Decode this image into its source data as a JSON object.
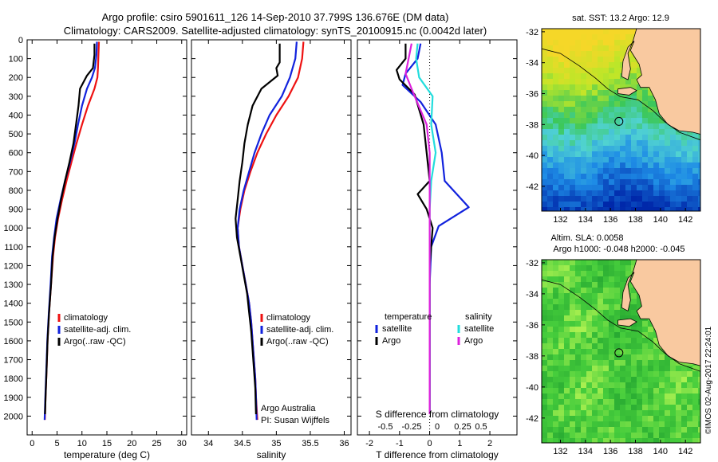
{
  "header": {
    "line1": "Argo profile: csiro 5901611_126 14-Sep-2010 37.799S 136.676E (DM data)",
    "line2": "Climatology: CARS2009. Satellite-adjusted climatology: synTS_20100915.nc (0.0042d later)"
  },
  "colors": {
    "climatology": "#ee1111",
    "satellite": "#1122dd",
    "argo": "#000000",
    "sal_satellite": "#22dddd",
    "sal_argo": "#dd22dd",
    "land": "#f9c9a0"
  },
  "chart_data": [
    {
      "type": "line",
      "id": "temperature",
      "xlabel": "temperature (deg C)",
      "ylim": [
        2100,
        0
      ],
      "yticks": [
        0,
        100,
        200,
        300,
        400,
        500,
        600,
        700,
        800,
        900,
        1000,
        1100,
        1200,
        1300,
        1400,
        1500,
        1600,
        1700,
        1800,
        1900,
        2000
      ],
      "xlim": [
        -1,
        31
      ],
      "xticks": [
        0,
        5,
        10,
        15,
        20,
        25,
        30
      ],
      "legend": [
        "climatology",
        "satellite-adj. clim.",
        "Argo(..raw -QC)"
      ],
      "series": [
        {
          "name": "climatology",
          "color": "#ee1111",
          "points": [
            [
              13.4,
              10
            ],
            [
              13.3,
              80
            ],
            [
              13.2,
              150
            ],
            [
              13.1,
              200
            ],
            [
              12.5,
              260
            ],
            [
              11.2,
              350
            ],
            [
              10.0,
              450
            ],
            [
              8.9,
              550
            ],
            [
              7.9,
              650
            ],
            [
              6.9,
              750
            ],
            [
              6.0,
              850
            ],
            [
              5.2,
              950
            ],
            [
              4.6,
              1050
            ],
            [
              4.2,
              1150
            ],
            [
              3.8,
              1300
            ],
            [
              3.4,
              1450
            ],
            [
              3.1,
              1600
            ],
            [
              2.9,
              1750
            ],
            [
              2.7,
              1900
            ],
            [
              2.55,
              2020
            ]
          ]
        },
        {
          "name": "satellite-adj. clim.",
          "color": "#1122dd",
          "points": [
            [
              13.0,
              10
            ],
            [
              12.9,
              80
            ],
            [
              12.6,
              150
            ],
            [
              12.0,
              200
            ],
            [
              11.0,
              260
            ],
            [
              10.0,
              350
            ],
            [
              9.2,
              450
            ],
            [
              8.5,
              550
            ],
            [
              7.6,
              650
            ],
            [
              6.6,
              750
            ],
            [
              5.7,
              850
            ],
            [
              4.9,
              950
            ],
            [
              4.4,
              1050
            ],
            [
              4.0,
              1150
            ],
            [
              3.7,
              1300
            ],
            [
              3.35,
              1450
            ],
            [
              3.05,
              1600
            ],
            [
              2.85,
              1750
            ],
            [
              2.65,
              1900
            ],
            [
              2.5,
              2020
            ]
          ]
        },
        {
          "name": "Argo(..raw -QC)",
          "color": "#000000",
          "points": [
            [
              12.5,
              20
            ],
            [
              12.5,
              80
            ],
            [
              12.2,
              150
            ],
            [
              11.0,
              190
            ],
            [
              9.6,
              260
            ],
            [
              9.3,
              350
            ],
            [
              8.8,
              450
            ],
            [
              8.3,
              550
            ],
            [
              7.5,
              650
            ],
            [
              6.6,
              750
            ],
            [
              5.8,
              850
            ],
            [
              5.1,
              950
            ],
            [
              4.5,
              1050
            ],
            [
              4.1,
              1150
            ],
            [
              3.8,
              1300
            ],
            [
              3.4,
              1450
            ],
            [
              3.1,
              1600
            ],
            [
              2.9,
              1750
            ],
            [
              2.7,
              1900
            ],
            [
              2.6,
              1990
            ]
          ]
        }
      ]
    },
    {
      "type": "line",
      "id": "salinity",
      "xlabel": "salinity",
      "ylim": [
        2100,
        0
      ],
      "xlim": [
        33.75,
        36.1
      ],
      "xticks": [
        34,
        34.5,
        35,
        35.5,
        36
      ],
      "legend": [
        "climatology",
        "satellite-adj. clim.",
        "Argo(..raw -QC)"
      ],
      "annotation": [
        "Argo Australia",
        "PI: Susan Wijffels"
      ],
      "series": [
        {
          "name": "climatology",
          "color": "#ee1111",
          "points": [
            [
              35.4,
              10
            ],
            [
              35.38,
              100
            ],
            [
              35.32,
              200
            ],
            [
              35.18,
              300
            ],
            [
              35.0,
              400
            ],
            [
              34.85,
              500
            ],
            [
              34.72,
              600
            ],
            [
              34.62,
              700
            ],
            [
              34.53,
              800
            ],
            [
              34.47,
              900
            ],
            [
              34.43,
              1000
            ],
            [
              34.45,
              1100
            ],
            [
              34.5,
              1200
            ],
            [
              34.55,
              1300
            ],
            [
              34.6,
              1400
            ],
            [
              34.63,
              1500
            ],
            [
              34.65,
              1600
            ],
            [
              34.67,
              1700
            ],
            [
              34.69,
              1800
            ],
            [
              34.7,
              1900
            ],
            [
              34.72,
              2020
            ]
          ]
        },
        {
          "name": "satellite-adj. clim.",
          "color": "#1122dd",
          "points": [
            [
              35.3,
              10
            ],
            [
              35.28,
              100
            ],
            [
              35.2,
              200
            ],
            [
              35.08,
              300
            ],
            [
              34.9,
              400
            ],
            [
              34.78,
              500
            ],
            [
              34.68,
              600
            ],
            [
              34.6,
              700
            ],
            [
              34.52,
              800
            ],
            [
              34.46,
              900
            ],
            [
              34.43,
              1000
            ],
            [
              34.45,
              1100
            ],
            [
              34.5,
              1200
            ],
            [
              34.55,
              1300
            ],
            [
              34.6,
              1400
            ],
            [
              34.63,
              1500
            ],
            [
              34.65,
              1600
            ],
            [
              34.67,
              1700
            ],
            [
              34.69,
              1800
            ],
            [
              34.7,
              1900
            ],
            [
              34.71,
              2020
            ]
          ]
        },
        {
          "name": "Argo(..raw -QC)",
          "color": "#000000",
          "points": [
            [
              35.05,
              20
            ],
            [
              35.05,
              120
            ],
            [
              35.0,
              150
            ],
            [
              35.02,
              190
            ],
            [
              34.78,
              260
            ],
            [
              34.65,
              350
            ],
            [
              34.58,
              450
            ],
            [
              34.53,
              550
            ],
            [
              34.5,
              650
            ],
            [
              34.46,
              750
            ],
            [
              34.43,
              850
            ],
            [
              34.4,
              950
            ],
            [
              34.42,
              1050
            ],
            [
              34.47,
              1150
            ],
            [
              34.52,
              1250
            ],
            [
              34.57,
              1350
            ],
            [
              34.6,
              1450
            ],
            [
              34.63,
              1550
            ],
            [
              34.65,
              1650
            ],
            [
              34.67,
              1750
            ],
            [
              34.69,
              1850
            ],
            [
              34.7,
              1990
            ]
          ]
        }
      ]
    },
    {
      "type": "line",
      "id": "difference",
      "xlabel": "T difference from climatology",
      "xlabel_top": "S difference from climatology",
      "ylim": [
        2100,
        0
      ],
      "xlim": [
        -2.4,
        2.9
      ],
      "xticks": [
        -2,
        -1,
        0,
        1,
        2
      ],
      "xticks_top": [
        "-0.5",
        "-0.25",
        "0",
        "0.25",
        "0.5"
      ],
      "legend_titles": [
        "temperature",
        "salinity"
      ],
      "legend": [
        "satellite",
        "Argo",
        "satellite",
        "Argo"
      ],
      "series": [
        {
          "name": "temperature satellite",
          "color": "#1122dd",
          "points": [
            [
              -0.3,
              20
            ],
            [
              -0.4,
              100
            ],
            [
              -0.8,
              180
            ],
            [
              -0.9,
              240
            ],
            [
              -0.3,
              330
            ],
            [
              0.2,
              450
            ],
            [
              0.4,
              600
            ],
            [
              0.5,
              750
            ],
            [
              1.3,
              890
            ],
            [
              0.3,
              990
            ],
            [
              0.05,
              1100
            ],
            [
              0.0,
              1300
            ],
            [
              0.0,
              1990
            ]
          ]
        },
        {
          "name": "temperature Argo",
          "color": "#000000",
          "points": [
            [
              -0.8,
              20
            ],
            [
              -0.8,
              100
            ],
            [
              -1.1,
              160
            ],
            [
              -1.0,
              210
            ],
            [
              -0.5,
              290
            ],
            [
              -0.2,
              450
            ],
            [
              -0.1,
              600
            ],
            [
              0.0,
              750
            ],
            [
              -0.4,
              820
            ],
            [
              -0.1,
              900
            ],
            [
              0.1,
              1000
            ],
            [
              0.0,
              1200
            ],
            [
              0.0,
              1990
            ]
          ]
        },
        {
          "name": "salinity satellite",
          "color": "#22dddd",
          "points": [
            [
              -0.4,
              20
            ],
            [
              -0.45,
              100
            ],
            [
              -0.35,
              200
            ],
            [
              0.1,
              300
            ],
            [
              0.05,
              450
            ],
            [
              0.2,
              600
            ],
            [
              0.05,
              750
            ],
            [
              0.0,
              900
            ],
            [
              0.0,
              1990
            ]
          ]
        },
        {
          "name": "salinity Argo",
          "color": "#dd22dd",
          "points": [
            [
              -0.6,
              20
            ],
            [
              -0.7,
              100
            ],
            [
              -0.8,
              180
            ],
            [
              -0.55,
              280
            ],
            [
              -0.1,
              450
            ],
            [
              0.0,
              600
            ],
            [
              0.0,
              1990
            ]
          ]
        }
      ]
    },
    {
      "type": "heatmap",
      "id": "sst-map",
      "title": "sat. SST: 13.2 Argo: 12.9",
      "xticks": [
        132,
        134,
        136,
        138,
        140,
        142
      ],
      "yticks": [
        -32,
        -34,
        -36,
        -38,
        -40,
        -42
      ],
      "xlim": [
        130.5,
        143.2
      ],
      "ylim": [
        -43.6,
        -31.8
      ],
      "marker": [
        136.676,
        -37.799
      ]
    },
    {
      "type": "heatmap",
      "id": "sla-map",
      "title_lines": [
        "Altim. SLA: 0.0058",
        "Argo h1000: -0.048 h2000: -0.045"
      ],
      "xticks": [
        132,
        134,
        136,
        138,
        140,
        142
      ],
      "yticks": [
        -32,
        -34,
        -36,
        -38,
        -40,
        -42
      ],
      "xlim": [
        130.5,
        143.2
      ],
      "ylim": [
        -43.6,
        -31.8
      ],
      "marker": [
        136.676,
        -37.799
      ]
    }
  ],
  "footer": {
    "stamp": "©IMOS 02-Aug-2017 22:24:01"
  }
}
